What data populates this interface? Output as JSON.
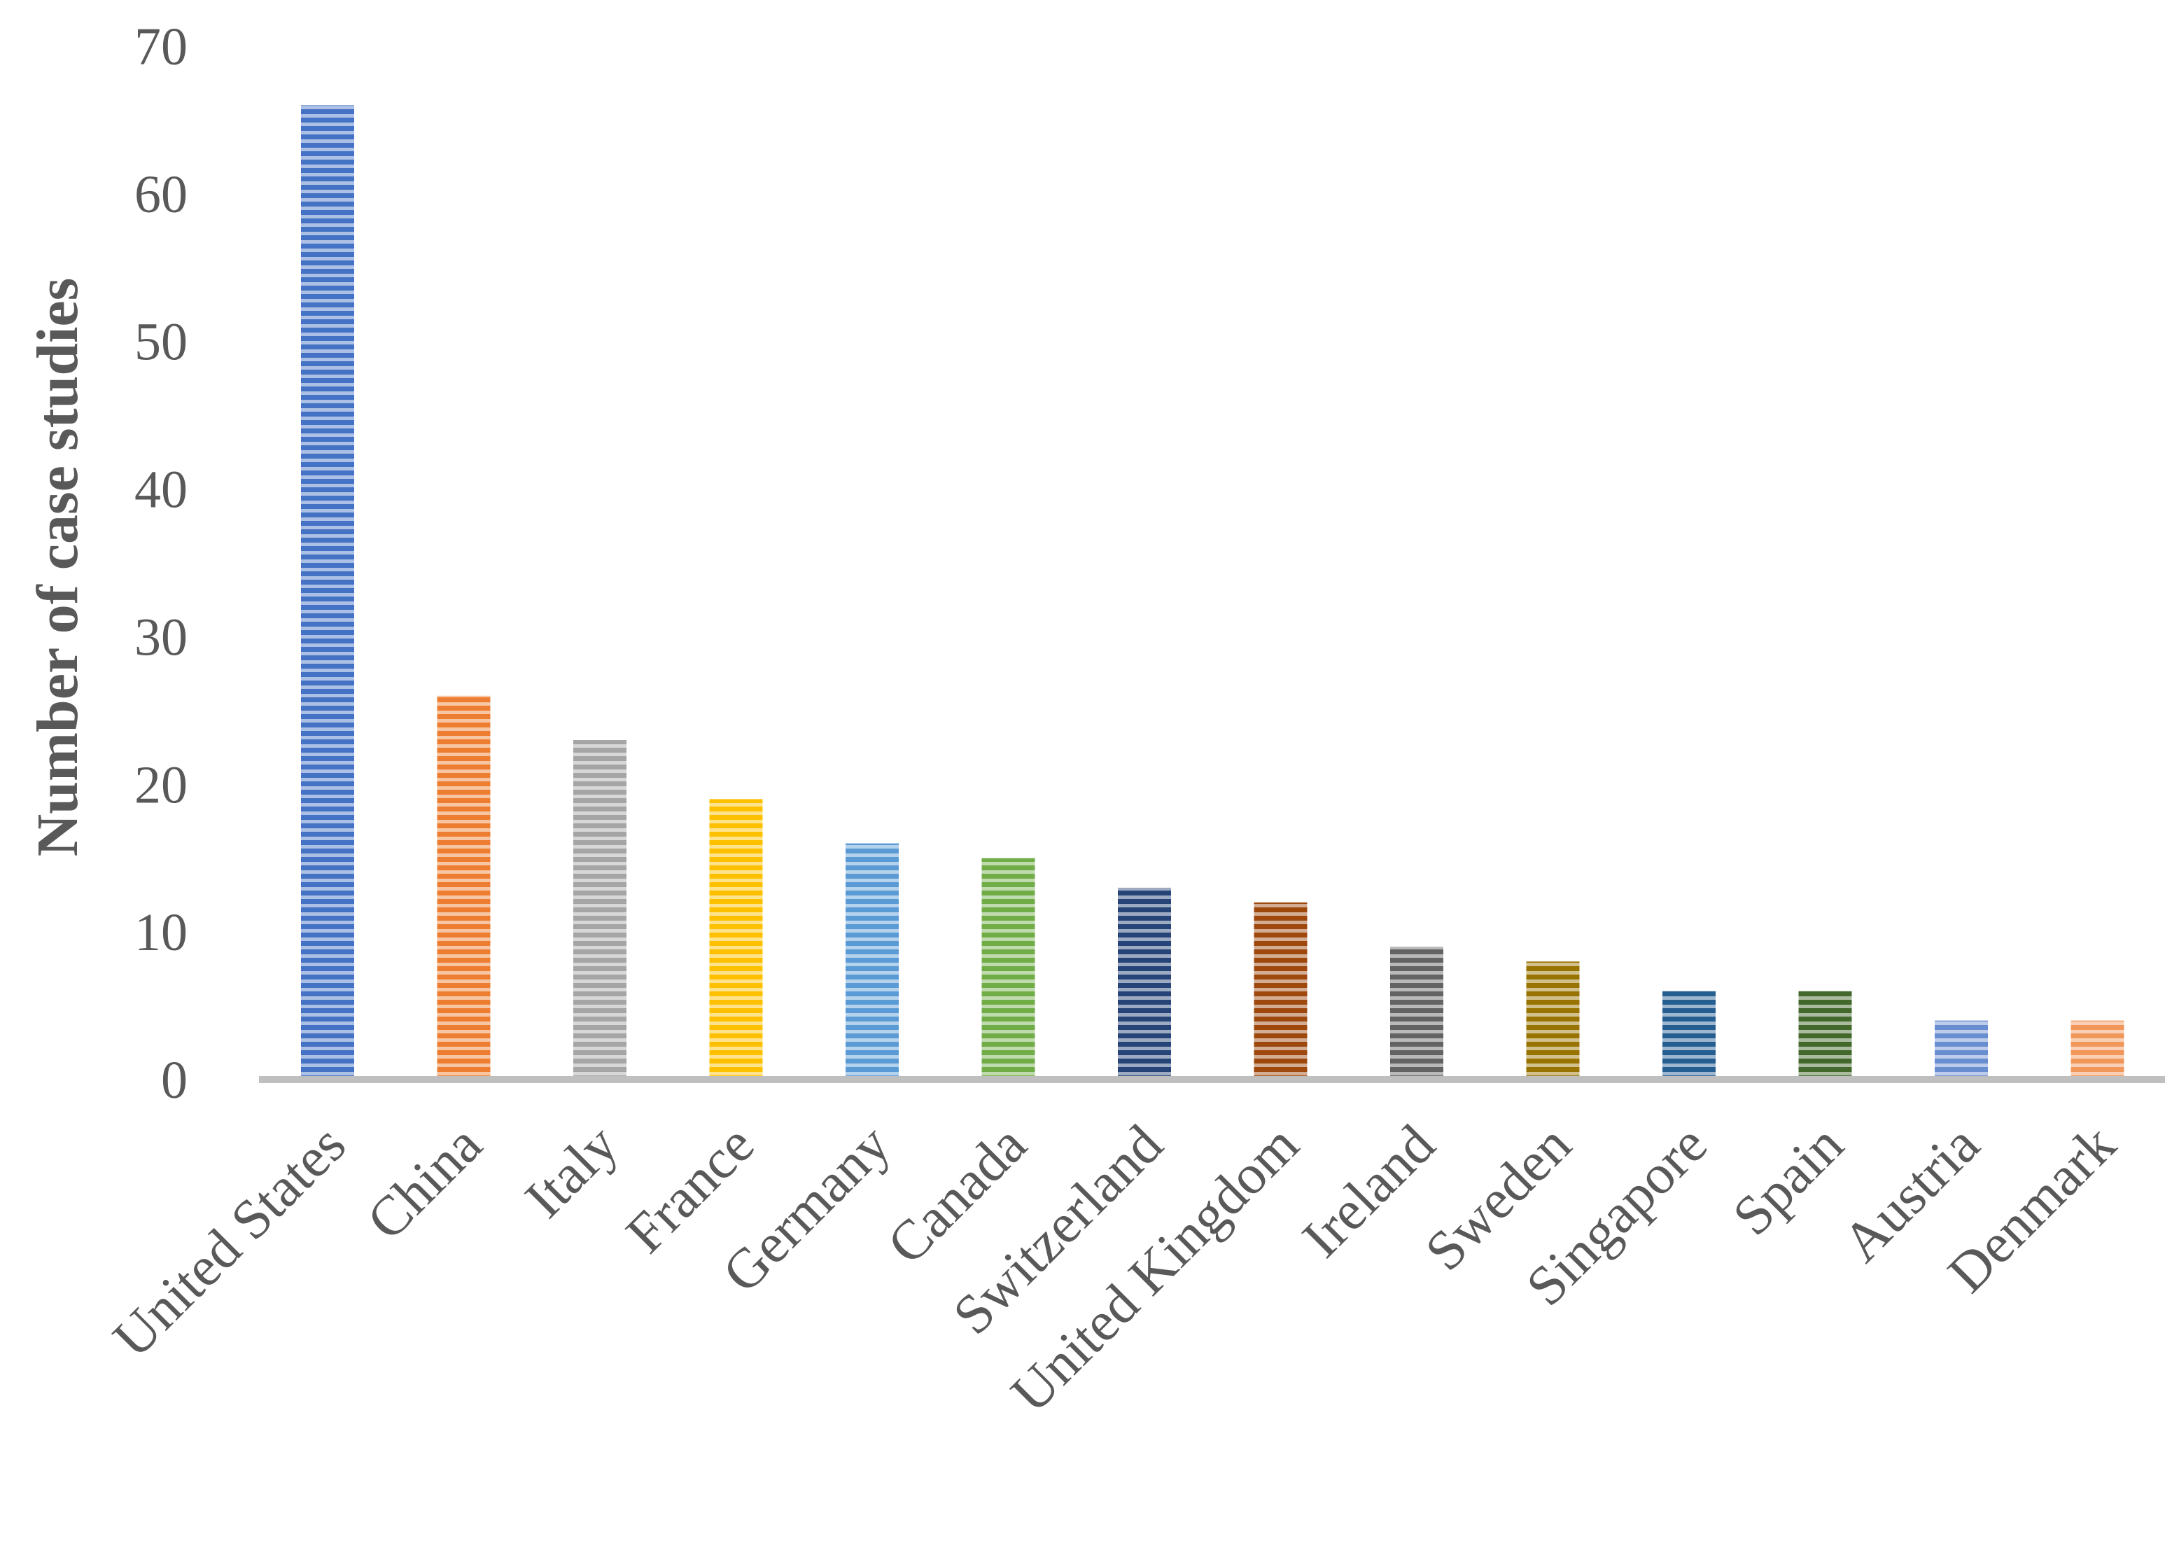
{
  "chart_data": {
    "type": "bar",
    "title": "",
    "xlabel": "",
    "ylabel": "Number of case studies",
    "ylim": [
      0,
      70
    ],
    "yticks": [
      0,
      10,
      20,
      30,
      40,
      50,
      60,
      70
    ],
    "grid": false,
    "legend": "none",
    "categories": [
      "United States",
      "China",
      "Italy",
      "France",
      "Germany",
      "Canada",
      "Switzerland",
      "United Kingdom",
      "Ireland",
      "Sweden",
      "Singapore",
      "Spain",
      "Austria",
      "Denmark"
    ],
    "values": [
      66,
      26,
      23,
      19,
      16,
      15,
      13,
      12,
      9,
      8,
      6,
      6,
      4,
      4
    ],
    "colors": [
      "#4472C4",
      "#ED7D31",
      "#A5A5A5",
      "#FFC000",
      "#5B9BD5",
      "#70AD47",
      "#264478",
      "#9E480E",
      "#636363",
      "#997300",
      "#255E91",
      "#43682B",
      "#698ED0",
      "#F1975A"
    ],
    "bar_fill": "horizontal-stripes"
  }
}
